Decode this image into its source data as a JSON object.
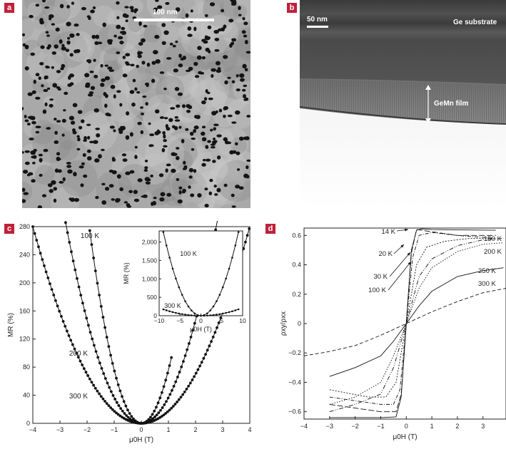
{
  "panel_a": {
    "label": "a",
    "scale_bar": "100 nm"
  },
  "panel_b": {
    "label": "b",
    "scale_bar": "50 nm",
    "substrate_label": "Ge substrate",
    "film_label": "GeMn film"
  },
  "chart_data": [
    {
      "panel": "c",
      "type": "scatter",
      "xlabel": "μ0H (T)",
      "ylabel": "MR (%)",
      "xlim": [
        -4,
        4
      ],
      "ylim": [
        0,
        280
      ],
      "xticks": [
        -4,
        -3,
        -2,
        -1,
        0,
        1,
        2,
        3,
        4
      ],
      "yticks": [
        0,
        40,
        80,
        120,
        160,
        200,
        240,
        280
      ],
      "series": [
        {
          "name": "100 K",
          "xrange": [
            -1.9,
            1.15
          ],
          "coef": 76
        },
        {
          "name": "200 K",
          "xrange": [
            -3,
            3
          ],
          "coef": 36.7
        },
        {
          "name": "300 K",
          "xrange": [
            -4,
            4
          ],
          "coef": 17.5
        }
      ],
      "inset": {
        "xlabel": "μ0H (T)",
        "ylabel": "MR (%)",
        "xlim": [
          -10,
          10
        ],
        "ylim": [
          0,
          2300
        ],
        "xticks": [
          -10,
          -5,
          0,
          5,
          10
        ],
        "yticks": [
          0,
          500,
          1000,
          1500,
          2000
        ],
        "ytick_labels": [
          "0",
          "500",
          "1,000",
          "1,500",
          "2,000"
        ],
        "series": [
          {
            "name": "100 K",
            "xrange": [
              -9,
              9
            ],
            "coef": 28
          },
          {
            "name": "300 K",
            "xrange": [
              -9,
              9
            ],
            "coef": 2.15
          }
        ]
      }
    },
    {
      "panel": "d",
      "type": "line",
      "xlabel": "μ0H (T)",
      "ylabel": "ρxy/ρxx",
      "xlim": [
        -4,
        3.9
      ],
      "ylim": [
        -0.65,
        0.65
      ],
      "xticks": [
        -4,
        -3,
        -2,
        -1,
        0,
        1,
        2,
        3
      ],
      "yticks": [
        -0.6,
        -0.4,
        -0.2,
        0,
        0.2,
        0.4,
        0.6
      ],
      "series": [
        {
          "name": "14 K",
          "points": [
            [
              -3,
              -0.64
            ],
            [
              -1,
              -0.64
            ],
            [
              -0.4,
              -0.635
            ],
            [
              -0.2,
              -0.5
            ],
            [
              0,
              0
            ],
            [
              0.2,
              0.5
            ],
            [
              0.4,
              0.635
            ],
            [
              0.6,
              0.645
            ],
            [
              1,
              0.64
            ],
            [
              3.5,
              0.635
            ]
          ]
        },
        {
          "name": "20 K",
          "points": [
            [
              -3,
              -0.55
            ],
            [
              -1,
              -0.6
            ],
            [
              -0.4,
              -0.6
            ],
            [
              -0.2,
              -0.48
            ],
            [
              0,
              0
            ],
            [
              0.2,
              0.48
            ],
            [
              0.4,
              0.64
            ],
            [
              0.8,
              0.63
            ],
            [
              2,
              0.6
            ],
            [
              3.5,
              0.6
            ]
          ]
        },
        {
          "name": "30 K",
          "points": [
            [
              -3,
              -0.5
            ],
            [
              -1,
              -0.55
            ],
            [
              -0.5,
              -0.55
            ],
            [
              -0.25,
              -0.45
            ],
            [
              0,
              0
            ],
            [
              0.25,
              0.45
            ],
            [
              0.5,
              0.6
            ],
            [
              1,
              0.62
            ],
            [
              2,
              0.6
            ],
            [
              3.5,
              0.58
            ]
          ]
        },
        {
          "name": "100 K",
          "points": [
            [
              -3,
              -0.45
            ],
            [
              -1.5,
              -0.5
            ],
            [
              -0.8,
              -0.5
            ],
            [
              -0.4,
              -0.4
            ],
            [
              0,
              0
            ],
            [
              0.4,
              0.4
            ],
            [
              0.8,
              0.52
            ],
            [
              1.5,
              0.56
            ],
            [
              2.5,
              0.58
            ],
            [
              3.5,
              0.58
            ]
          ]
        },
        {
          "name": "150 K",
          "points": [
            [
              -3,
              -0.6
            ],
            [
              -2,
              -0.55
            ],
            [
              -1,
              -0.48
            ],
            [
              -0.5,
              -0.3
            ],
            [
              0,
              0
            ],
            [
              0.5,
              0.32
            ],
            [
              1,
              0.44
            ],
            [
              2,
              0.53
            ],
            [
              3,
              0.57
            ],
            [
              3.8,
              0.58
            ]
          ]
        },
        {
          "name": "200 K",
          "points": [
            [
              -3,
              -0.55
            ],
            [
              -2,
              -0.5
            ],
            [
              -1,
              -0.4
            ],
            [
              -0.5,
              -0.22
            ],
            [
              0,
              0
            ],
            [
              0.5,
              0.24
            ],
            [
              1,
              0.38
            ],
            [
              2,
              0.49
            ],
            [
              3,
              0.54
            ],
            [
              3.8,
              0.55
            ]
          ]
        },
        {
          "name": "250 K",
          "points": [
            [
              -3,
              -0.36
            ],
            [
              -2,
              -0.3
            ],
            [
              -1,
              -0.22
            ],
            [
              -0.5,
              -0.12
            ],
            [
              0,
              0
            ],
            [
              0.5,
              0.12
            ],
            [
              1,
              0.22
            ],
            [
              2,
              0.32
            ],
            [
              3,
              0.36
            ],
            [
              3.8,
              0.38
            ]
          ]
        },
        {
          "name": "300 K",
          "points": [
            [
              -4,
              -0.22
            ],
            [
              -3,
              -0.19
            ],
            [
              -2,
              -0.15
            ],
            [
              -1,
              -0.08
            ],
            [
              0,
              0
            ],
            [
              1,
              0.08
            ],
            [
              2,
              0.15
            ],
            [
              3,
              0.21
            ],
            [
              3.9,
              0.24
            ]
          ]
        }
      ]
    }
  ]
}
